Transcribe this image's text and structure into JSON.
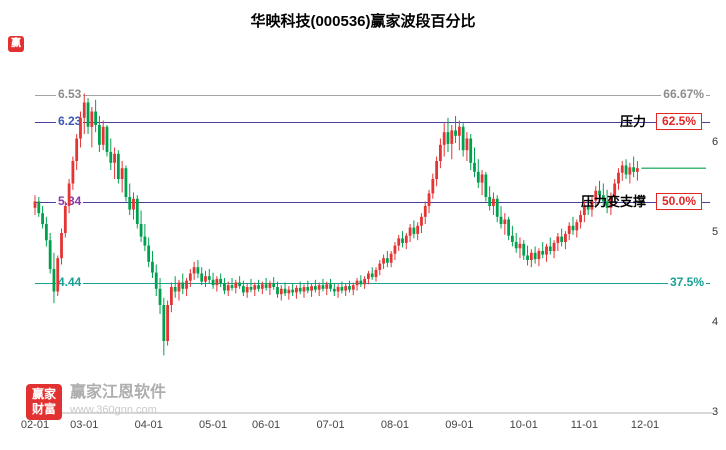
{
  "title": "华映科技(000536)赢家波段百分比",
  "logo": {
    "glyph": "赢"
  },
  "watermark": {
    "logo_top": "赢家",
    "logo_bottom": "财富",
    "brand": "赢家江恩软件",
    "url": "www.360gnn.com"
  },
  "colors": {
    "up": "#e43434",
    "down": "#00a14e",
    "last_price_line": "#00a14e",
    "axis": "#b0b0b0",
    "badge_red": "#e02626"
  },
  "chart_data": {
    "type": "candlestick",
    "title": "华映科技(000536)赢家波段百分比",
    "xlabel": "",
    "ylabel": "",
    "grid": false,
    "ylim": [
      3,
      7
    ],
    "y_ticks": [
      6,
      5,
      4,
      3
    ],
    "x_ticks": [
      {
        "label": "02-01",
        "i": 0
      },
      {
        "label": "03-01",
        "i": 13
      },
      {
        "label": "04-01",
        "i": 30
      },
      {
        "label": "05-01",
        "i": 47
      },
      {
        "label": "06-01",
        "i": 61
      },
      {
        "label": "07-01",
        "i": 78
      },
      {
        "label": "08-01",
        "i": 95
      },
      {
        "label": "09-01",
        "i": 112
      },
      {
        "label": "10-01",
        "i": 129
      },
      {
        "label": "11-01",
        "i": 145
      },
      {
        "label": "12-01",
        "i": 161
      }
    ],
    "levels": [
      {
        "price": "6.53",
        "value": 6.53,
        "percent": "66.67%",
        "note": "",
        "boxed": false,
        "line_color": "#a3a3a3",
        "label_color": "#8c8c8c",
        "percent_color": "#8c8c8c"
      },
      {
        "price": "6.23",
        "value": 6.23,
        "percent": "62.5%",
        "note": "压力",
        "boxed": true,
        "line_color": "#4a3e96",
        "label_color": "#3b57b5",
        "percent_color": "#e02626"
      },
      {
        "price": "5.34",
        "value": 5.34,
        "percent": "50.0%",
        "note": "压力变支撑",
        "boxed": true,
        "line_color": "#4a3e96",
        "label_color": "#8a38a8",
        "percent_color": "#e02626"
      },
      {
        "price": "4.44",
        "value": 4.44,
        "percent": "37.5%",
        "note": "",
        "boxed": false,
        "line_color": "#17a093",
        "label_color": "#17a093",
        "percent_color": "#17a093"
      }
    ],
    "last_price": 5.72,
    "candles": [
      [
        5.28,
        5.42,
        5.2,
        5.35
      ],
      [
        5.35,
        5.4,
        5.18,
        5.22
      ],
      [
        5.22,
        5.3,
        5.05,
        5.1
      ],
      [
        5.1,
        5.18,
        4.85,
        4.92
      ],
      [
        4.92,
        5.0,
        4.55,
        4.6
      ],
      [
        4.6,
        4.78,
        4.22,
        4.35
      ],
      [
        4.35,
        4.75,
        4.3,
        4.72
      ],
      [
        4.72,
        5.05,
        4.65,
        5.0
      ],
      [
        5.0,
        5.35,
        4.95,
        5.3
      ],
      [
        5.3,
        5.6,
        5.22,
        5.55
      ],
      [
        5.55,
        5.85,
        5.48,
        5.8
      ],
      [
        5.8,
        6.1,
        5.7,
        6.05
      ],
      [
        6.05,
        6.35,
        5.95,
        6.28
      ],
      [
        6.28,
        6.55,
        6.1,
        6.45
      ],
      [
        6.45,
        6.5,
        6.1,
        6.18
      ],
      [
        6.18,
        6.4,
        5.95,
        6.35
      ],
      [
        6.35,
        6.48,
        6.12,
        6.2
      ],
      [
        6.2,
        6.3,
        5.9,
        5.98
      ],
      [
        5.98,
        6.25,
        5.92,
        6.18
      ],
      [
        6.18,
        6.2,
        5.85,
        5.9
      ],
      [
        5.9,
        6.05,
        5.7,
        5.78
      ],
      [
        5.78,
        5.95,
        5.6,
        5.88
      ],
      [
        5.88,
        5.92,
        5.55,
        5.6
      ],
      [
        5.6,
        5.8,
        5.45,
        5.72
      ],
      [
        5.72,
        5.75,
        5.35,
        5.4
      ],
      [
        5.4,
        5.55,
        5.2,
        5.26
      ],
      [
        5.26,
        5.45,
        5.15,
        5.38
      ],
      [
        5.38,
        5.42,
        5.05,
        5.1
      ],
      [
        5.1,
        5.25,
        4.9,
        4.96
      ],
      [
        4.96,
        5.1,
        4.8,
        4.86
      ],
      [
        4.86,
        4.95,
        4.62,
        4.68
      ],
      [
        4.68,
        4.8,
        4.5,
        4.56
      ],
      [
        4.56,
        4.65,
        4.3,
        4.38
      ],
      [
        4.38,
        4.5,
        4.1,
        4.2
      ],
      [
        4.2,
        4.28,
        3.64,
        3.8
      ],
      [
        3.8,
        4.25,
        3.75,
        4.2
      ],
      [
        4.2,
        4.45,
        4.12,
        4.4
      ],
      [
        4.4,
        4.52,
        4.28,
        4.35
      ],
      [
        4.35,
        4.48,
        4.25,
        4.45
      ],
      [
        4.45,
        4.55,
        4.32,
        4.38
      ],
      [
        4.38,
        4.5,
        4.3,
        4.47
      ],
      [
        4.47,
        4.6,
        4.4,
        4.55
      ],
      [
        4.55,
        4.68,
        4.48,
        4.62
      ],
      [
        4.62,
        4.7,
        4.5,
        4.55
      ],
      [
        4.55,
        4.62,
        4.42,
        4.46
      ],
      [
        4.46,
        4.58,
        4.4,
        4.52
      ],
      [
        4.52,
        4.6,
        4.44,
        4.48
      ],
      [
        4.48,
        4.56,
        4.38,
        4.42
      ],
      [
        4.42,
        4.52,
        4.35,
        4.49
      ],
      [
        4.49,
        4.55,
        4.4,
        4.44
      ],
      [
        4.44,
        4.5,
        4.32,
        4.36
      ],
      [
        4.36,
        4.46,
        4.3,
        4.42
      ],
      [
        4.42,
        4.5,
        4.36,
        4.39
      ],
      [
        4.39,
        4.48,
        4.33,
        4.45
      ],
      [
        4.45,
        4.52,
        4.38,
        4.41
      ],
      [
        4.41,
        4.47,
        4.3,
        4.34
      ],
      [
        4.34,
        4.44,
        4.28,
        4.4
      ],
      [
        4.4,
        4.49,
        4.34,
        4.37
      ],
      [
        4.37,
        4.45,
        4.3,
        4.42
      ],
      [
        4.42,
        4.48,
        4.35,
        4.38
      ],
      [
        4.38,
        4.46,
        4.32,
        4.43
      ],
      [
        4.43,
        4.5,
        4.36,
        4.39
      ],
      [
        4.39,
        4.47,
        4.31,
        4.44
      ],
      [
        4.44,
        4.51,
        4.37,
        4.4
      ],
      [
        4.4,
        4.46,
        4.28,
        4.32
      ],
      [
        4.32,
        4.42,
        4.25,
        4.38
      ],
      [
        4.38,
        4.45,
        4.3,
        4.33
      ],
      [
        4.33,
        4.41,
        4.26,
        4.37
      ],
      [
        4.37,
        4.44,
        4.3,
        4.34
      ],
      [
        4.34,
        4.42,
        4.27,
        4.39
      ],
      [
        4.39,
        4.46,
        4.32,
        4.35
      ],
      [
        4.35,
        4.43,
        4.28,
        4.4
      ],
      [
        4.4,
        4.47,
        4.33,
        4.36
      ],
      [
        4.36,
        4.44,
        4.29,
        4.41
      ],
      [
        4.41,
        4.48,
        4.34,
        4.37
      ],
      [
        4.37,
        4.45,
        4.3,
        4.42
      ],
      [
        4.42,
        4.49,
        4.35,
        4.38
      ],
      [
        4.38,
        4.46,
        4.31,
        4.43
      ],
      [
        4.43,
        4.49,
        4.35,
        4.38
      ],
      [
        4.38,
        4.44,
        4.3,
        4.35
      ],
      [
        4.35,
        4.43,
        4.28,
        4.4
      ],
      [
        4.4,
        4.46,
        4.33,
        4.36
      ],
      [
        4.36,
        4.44,
        4.3,
        4.41
      ],
      [
        4.41,
        4.47,
        4.34,
        4.37
      ],
      [
        4.37,
        4.45,
        4.31,
        4.42
      ],
      [
        4.42,
        4.5,
        4.36,
        4.47
      ],
      [
        4.47,
        4.53,
        4.4,
        4.43
      ],
      [
        4.43,
        4.52,
        4.38,
        4.49
      ],
      [
        4.49,
        4.58,
        4.43,
        4.55
      ],
      [
        4.55,
        4.62,
        4.48,
        4.51
      ],
      [
        4.51,
        4.62,
        4.46,
        4.59
      ],
      [
        4.59,
        4.7,
        4.53,
        4.66
      ],
      [
        4.66,
        4.76,
        4.6,
        4.72
      ],
      [
        4.72,
        4.8,
        4.62,
        4.67
      ],
      [
        4.67,
        4.8,
        4.62,
        4.77
      ],
      [
        4.77,
        4.9,
        4.7,
        4.86
      ],
      [
        4.86,
        4.98,
        4.8,
        4.94
      ],
      [
        4.94,
        5.02,
        4.84,
        4.89
      ],
      [
        4.89,
        5.0,
        4.82,
        4.97
      ],
      [
        4.97,
        5.1,
        4.9,
        5.06
      ],
      [
        5.06,
        5.14,
        4.94,
        4.99
      ],
      [
        4.99,
        5.12,
        4.92,
        5.08
      ],
      [
        5.08,
        5.22,
        5.0,
        5.18
      ],
      [
        5.18,
        5.35,
        5.1,
        5.3
      ],
      [
        5.3,
        5.48,
        5.22,
        5.44
      ],
      [
        5.44,
        5.66,
        5.38,
        5.6
      ],
      [
        5.6,
        5.85,
        5.52,
        5.8
      ],
      [
        5.8,
        6.05,
        5.72,
        5.98
      ],
      [
        5.98,
        6.22,
        5.85,
        6.12
      ],
      [
        6.12,
        6.28,
        5.9,
        5.99
      ],
      [
        5.99,
        6.2,
        5.82,
        6.14
      ],
      [
        6.14,
        6.3,
        6.0,
        6.08
      ],
      [
        6.08,
        6.25,
        5.92,
        6.18
      ],
      [
        6.18,
        6.22,
        5.85,
        5.92
      ],
      [
        5.92,
        6.12,
        5.8,
        6.05
      ],
      [
        6.05,
        6.1,
        5.7,
        5.78
      ],
      [
        5.78,
        5.95,
        5.62,
        5.68
      ],
      [
        5.68,
        5.82,
        5.5,
        5.56
      ],
      [
        5.56,
        5.7,
        5.42,
        5.65
      ],
      [
        5.65,
        5.68,
        5.35,
        5.4
      ],
      [
        5.4,
        5.52,
        5.25,
        5.3
      ],
      [
        5.3,
        5.45,
        5.2,
        5.38
      ],
      [
        5.38,
        5.42,
        5.12,
        5.18
      ],
      [
        5.18,
        5.3,
        5.05,
        5.1
      ],
      [
        5.1,
        5.22,
        4.98,
        5.15
      ],
      [
        5.15,
        5.18,
        4.92,
        4.97
      ],
      [
        4.97,
        5.08,
        4.85,
        4.9
      ],
      [
        4.9,
        5.0,
        4.78,
        4.83
      ],
      [
        4.83,
        4.95,
        4.72,
        4.88
      ],
      [
        4.88,
        4.92,
        4.7,
        4.75
      ],
      [
        4.75,
        4.86,
        4.64,
        4.7
      ],
      [
        4.7,
        4.82,
        4.62,
        4.78
      ],
      [
        4.78,
        4.85,
        4.66,
        4.71
      ],
      [
        4.71,
        4.83,
        4.63,
        4.8
      ],
      [
        4.8,
        4.9,
        4.72,
        4.76
      ],
      [
        4.76,
        4.88,
        4.68,
        4.85
      ],
      [
        4.85,
        4.95,
        4.76,
        4.8
      ],
      [
        4.8,
        4.92,
        4.72,
        4.89
      ],
      [
        4.89,
        5.0,
        4.8,
        4.96
      ],
      [
        4.96,
        5.05,
        4.85,
        4.9
      ],
      [
        4.9,
        5.02,
        4.82,
        4.99
      ],
      [
        4.99,
        5.12,
        4.92,
        5.08
      ],
      [
        5.08,
        5.18,
        4.98,
        5.03
      ],
      [
        5.03,
        5.15,
        4.95,
        5.12
      ],
      [
        5.12,
        5.25,
        5.05,
        5.2
      ],
      [
        5.2,
        5.35,
        5.12,
        5.3
      ],
      [
        5.3,
        5.42,
        5.2,
        5.26
      ],
      [
        5.26,
        5.4,
        5.18,
        5.36
      ],
      [
        5.36,
        5.52,
        5.28,
        5.47
      ],
      [
        5.47,
        5.58,
        5.36,
        5.42
      ],
      [
        5.42,
        5.55,
        5.3,
        5.35
      ],
      [
        5.35,
        5.48,
        5.22,
        5.28
      ],
      [
        5.28,
        5.45,
        5.2,
        5.41
      ],
      [
        5.41,
        5.6,
        5.34,
        5.55
      ],
      [
        5.55,
        5.72,
        5.48,
        5.67
      ],
      [
        5.67,
        5.8,
        5.58,
        5.75
      ],
      [
        5.75,
        5.82,
        5.6,
        5.65
      ],
      [
        5.65,
        5.78,
        5.55,
        5.73
      ],
      [
        5.73,
        5.85,
        5.62,
        5.68
      ],
      [
        5.68,
        5.8,
        5.58,
        5.72
      ]
    ]
  }
}
